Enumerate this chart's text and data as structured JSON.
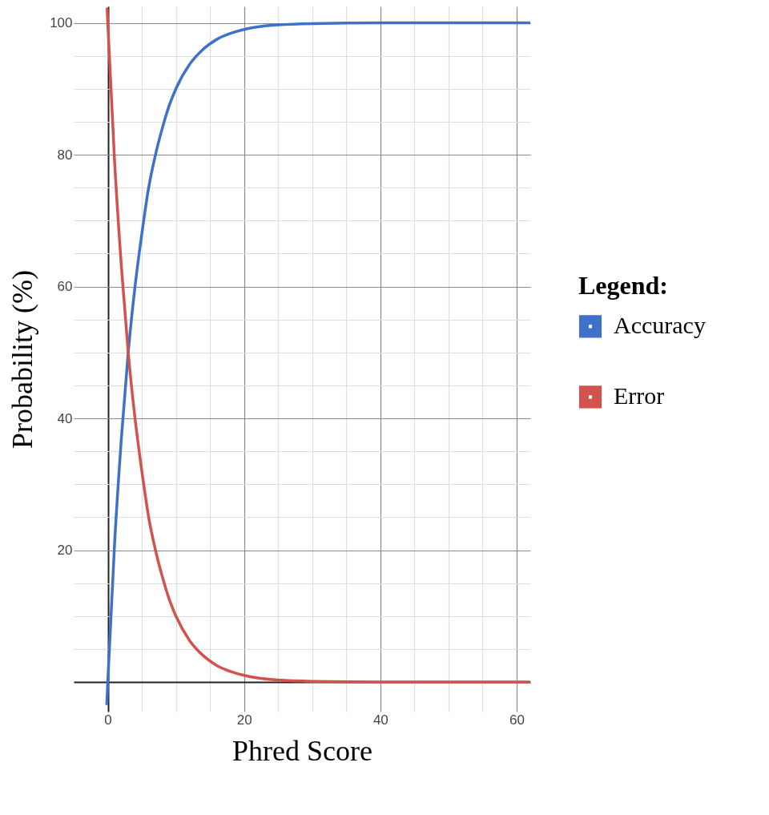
{
  "chart_data": {
    "type": "line",
    "xlabel": "Phred Score",
    "ylabel": "Probability (%)",
    "legend_title": "Legend:",
    "legend": "right",
    "grid": true,
    "xlim": [
      -5,
      62
    ],
    "ylim": [
      -4.5,
      102.5
    ],
    "xticks": [
      0,
      {
        "value": 5,
        "label": null
      },
      {
        "value": 10,
        "label": null
      },
      {
        "value": 15,
        "label": null
      },
      20,
      {
        "value": 25,
        "label": null
      },
      {
        "value": 30,
        "label": null
      },
      {
        "value": 35,
        "label": null
      },
      40,
      {
        "value": 45,
        "label": null
      },
      {
        "value": 50,
        "label": null
      },
      {
        "value": 55,
        "label": null
      },
      60
    ],
    "yticks": [
      {
        "value": 0,
        "label": null
      },
      {
        "value": 5,
        "label": null
      },
      {
        "value": 10,
        "label": null
      },
      {
        "value": 15,
        "label": null
      },
      20,
      {
        "value": 25,
        "label": null
      },
      {
        "value": 30,
        "label": null
      },
      {
        "value": 35,
        "label": null
      },
      40,
      {
        "value": 45,
        "label": null
      },
      {
        "value": 50,
        "label": null
      },
      {
        "value": 55,
        "label": null
      },
      60,
      {
        "value": 65,
        "label": null
      },
      {
        "value": 70,
        "label": null
      },
      {
        "value": 75,
        "label": null
      },
      80,
      {
        "value": 85,
        "label": null
      },
      {
        "value": 90,
        "label": null
      },
      {
        "value": 95,
        "label": null
      },
      100
    ],
    "series": [
      {
        "name": "Accuracy",
        "color": "#3d72c8",
        "x": [
          -0.15,
          0,
          1,
          2,
          3,
          4,
          5,
          6,
          7,
          8,
          9,
          10,
          12,
          14,
          16,
          18,
          20,
          22,
          25,
          30,
          40,
          50,
          62
        ],
        "values": [
          -3.5,
          0,
          21,
          37,
          50,
          60,
          68,
          75,
          80,
          84,
          87.4,
          90,
          93.7,
          96,
          97.5,
          98.4,
          99,
          99.4,
          99.7,
          99.9,
          100,
          100,
          100
        ]
      },
      {
        "name": "Error",
        "color": "#d2524c",
        "x": [
          -0.1,
          0,
          1,
          2,
          3,
          4,
          5,
          6,
          7,
          8,
          9,
          10,
          12,
          14,
          16,
          18,
          20,
          22,
          25,
          30,
          40,
          50,
          62
        ],
        "values": [
          102.3,
          100,
          79,
          63,
          50,
          40,
          32,
          25,
          20,
          16,
          12.6,
          10,
          6.3,
          4,
          2.5,
          1.6,
          1,
          0.6,
          0.3,
          0.1,
          0,
          0,
          0
        ]
      }
    ]
  }
}
